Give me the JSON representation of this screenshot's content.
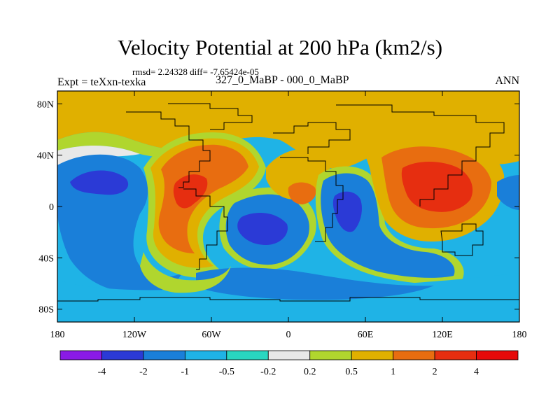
{
  "header": {
    "title": "Velocity Potential at 200 hPa (km2/s)",
    "stats": "rmsd= 2.24328 diff= -7.65424e-05",
    "left_label": "Expt = teXxn-texka",
    "center_label": "327_0_MaBP - 000_0_MaBP",
    "right_label": "ANN"
  },
  "chart_data": {
    "type": "heatmap",
    "title": "Velocity Potential at 200 hPa (km2/s)",
    "subtitle": "327_0_MaBP - 000_0_MaBP",
    "units": "km2/s",
    "projection": "cylindrical equidistant",
    "x_range": [
      -180,
      180
    ],
    "y_range": [
      -90,
      90
    ],
    "x_ticks": [
      {
        "value": -180,
        "label": "180"
      },
      {
        "value": -120,
        "label": "120W"
      },
      {
        "value": -60,
        "label": "60W"
      },
      {
        "value": 0,
        "label": "0"
      },
      {
        "value": 60,
        "label": "60E"
      },
      {
        "value": 120,
        "label": "120E"
      },
      {
        "value": 180,
        "label": "180"
      }
    ],
    "y_ticks": [
      {
        "value": 80,
        "label": "80N"
      },
      {
        "value": 40,
        "label": "40N"
      },
      {
        "value": 0,
        "label": "0"
      },
      {
        "value": -40,
        "label": "40S"
      },
      {
        "value": -80,
        "label": "80S"
      }
    ],
    "colorbar": {
      "levels": [
        -4,
        -2,
        -1,
        -0.5,
        -0.2,
        0.2,
        0.5,
        1,
        2,
        4
      ],
      "labels": [
        "-4",
        "-2",
        "-1",
        "-0.5",
        "-0.2",
        "0.2",
        "0.5",
        "1",
        "2",
        "4"
      ],
      "colors": [
        "#8a1ae6",
        "#2b3ad6",
        "#1a7fd9",
        "#1fb3e6",
        "#29d6c0",
        "#e8e8e8",
        "#b0d62e",
        "#e0b000",
        "#e86d10",
        "#e62e10",
        "#e60a0a"
      ]
    },
    "features": [
      {
        "label": "negative center",
        "lon": -140,
        "lat": 15,
        "value": -4
      },
      {
        "label": "negative center",
        "lon": -20,
        "lat": -15,
        "value": -4
      },
      {
        "label": "negative center",
        "lon": 45,
        "lat": -5,
        "value": -4
      },
      {
        "label": "positive center",
        "lon": 120,
        "lat": 20,
        "value": 4
      },
      {
        "label": "positive center",
        "lon": -60,
        "lat": 25,
        "value": 2
      },
      {
        "label": "positive center",
        "lon": -75,
        "lat": 0,
        "value": 4
      },
      {
        "label": "positive center",
        "lon": 10,
        "lat": 15,
        "value": 2
      },
      {
        "label": "positive center",
        "lon": -55,
        "lat": -40,
        "value": 2
      }
    ]
  }
}
